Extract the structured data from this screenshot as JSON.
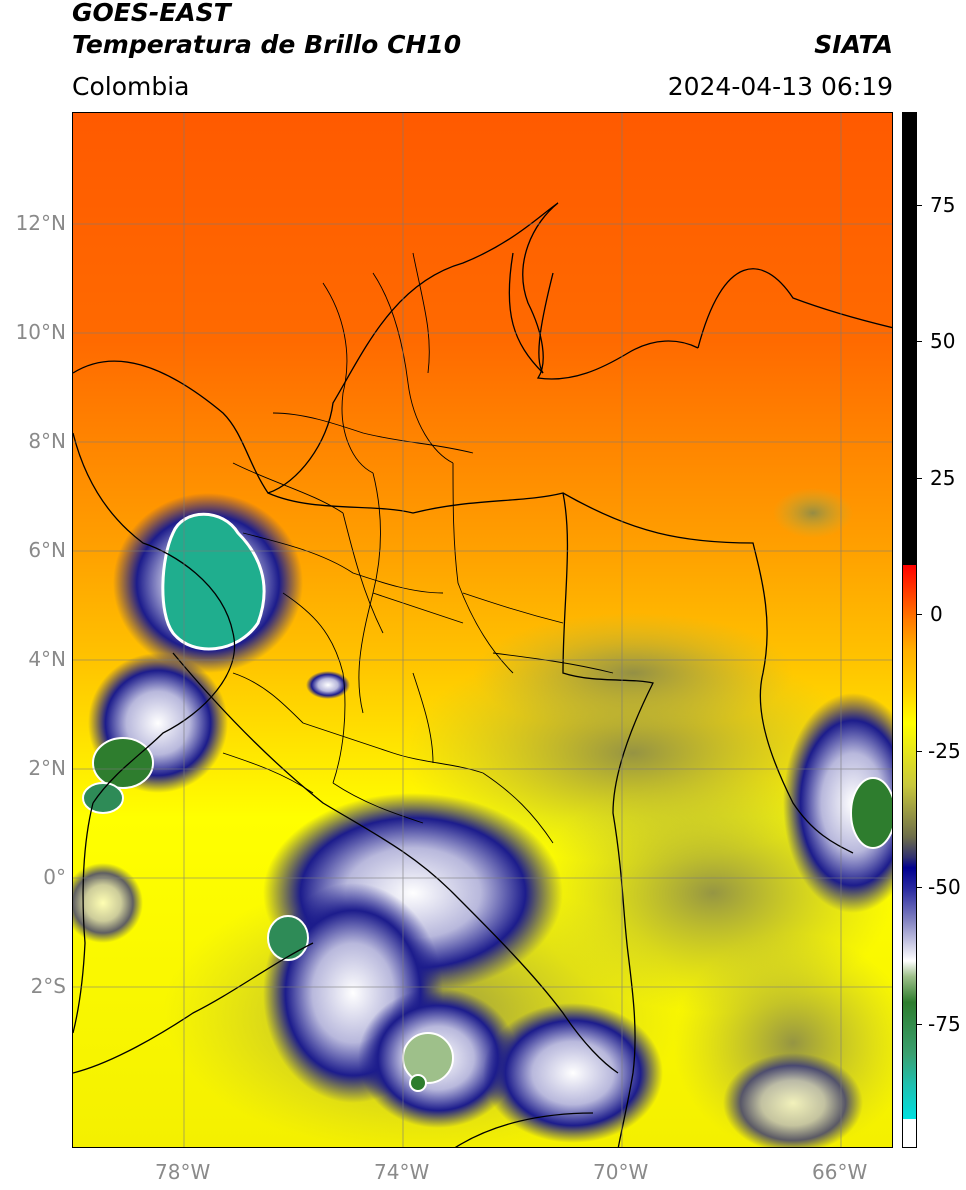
{
  "header": {
    "line1": "GOES-EAST",
    "line2": "Temperatura de Brillo CH10",
    "source": "SIATA",
    "region": "Colombia",
    "timestamp": "2024-04-13 06:19"
  },
  "axes": {
    "lat_ticks": [
      "12°N",
      "10°N",
      "8°N",
      "6°N",
      "4°N",
      "2°N",
      "0°",
      "2°S"
    ],
    "lon_ticks": [
      "78°W",
      "74°W",
      "70°W",
      "66°W"
    ]
  },
  "colorbar": {
    "ticks": [
      "75",
      "50",
      "25",
      "0",
      "-25",
      "-50",
      "-75"
    ]
  },
  "colors": {
    "warm": "#ff5a00",
    "mid": "#ffa000",
    "cool": "#ffff00",
    "cloud": "#00008b",
    "cold": "#2e8b57"
  }
}
